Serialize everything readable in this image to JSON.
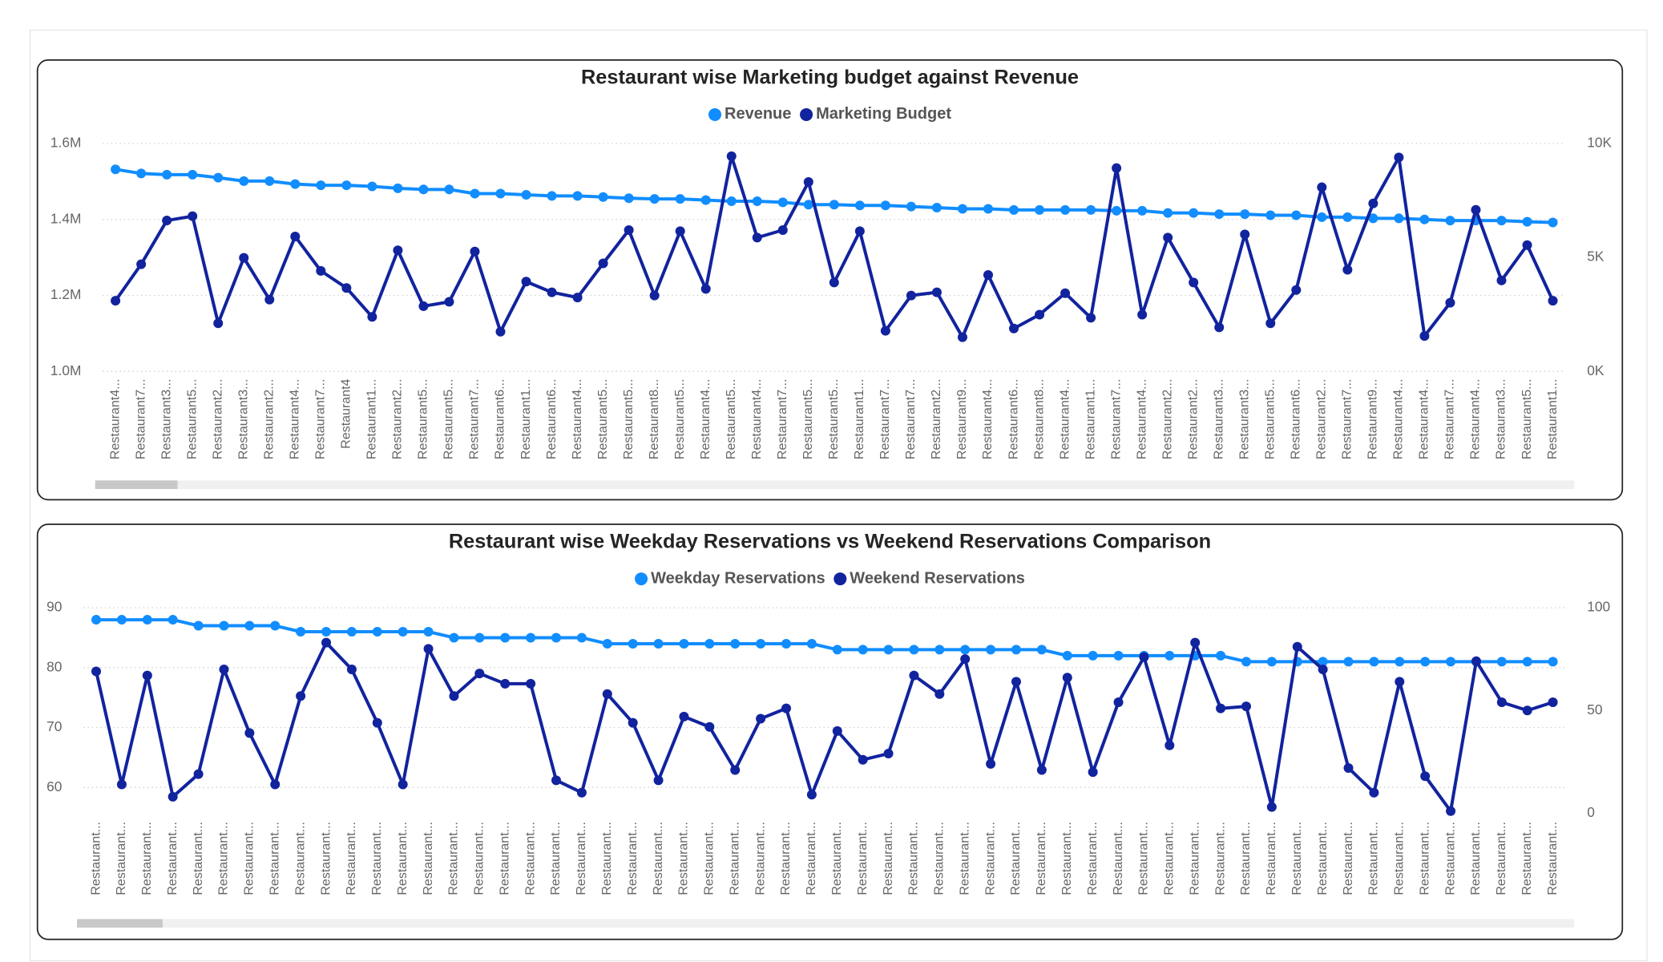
{
  "chart_data": [
    {
      "type": "line",
      "title": "Restaurant wise Marketing budget against Revenue",
      "legend": "top-center",
      "grid": true,
      "categories": [
        "Restaurant4...",
        "Restaurant7...",
        "Restaurant3...",
        "Restaurant5...",
        "Restaurant2...",
        "Restaurant3...",
        "Restaurant2...",
        "Restaurant4...",
        "Restaurant7...",
        "Restaurant4",
        "Restaurant1...",
        "Restaurant2...",
        "Restaurant5...",
        "Restaurant5...",
        "Restaurant7...",
        "Restaurant6...",
        "Restaurant1...",
        "Restaurant6...",
        "Restaurant4...",
        "Restaurant5...",
        "Restaurant5...",
        "Restaurant8...",
        "Restaurant5...",
        "Restaurant4...",
        "Restaurant5...",
        "Restaurant4...",
        "Restaurant7...",
        "Restaurant5...",
        "Restaurant5...",
        "Restaurant1...",
        "Restaurant7...",
        "Restaurant7...",
        "Restaurant2...",
        "Restaurant9...",
        "Restaurant4...",
        "Restaurant6...",
        "Restaurant8...",
        "Restaurant4...",
        "Restaurant1...",
        "Restaurant7...",
        "Restaurant4...",
        "Restaurant2...",
        "Restaurant2...",
        "Restaurant3...",
        "Restaurant3...",
        "Restaurant5...",
        "Restaurant6...",
        "Restaurant2...",
        "Restaurant7...",
        "Restaurant9...",
        "Restaurant4...",
        "Restaurant4...",
        "Restaurant7...",
        "Restaurant4...",
        "Restaurant3...",
        "Restaurant5...",
        "Restaurant1..."
      ],
      "ylim": [
        1000000,
        1600000
      ],
      "yticks": [
        {
          "value": 1000000,
          "label": "1.0M"
        },
        {
          "value": 1200000,
          "label": "1.2M"
        },
        {
          "value": 1400000,
          "label": "1.4M"
        },
        {
          "value": 1600000,
          "label": "1.6M"
        }
      ],
      "y2lim": [
        0,
        10000
      ],
      "y2ticks": [
        {
          "value": 0,
          "label": "0K"
        },
        {
          "value": 5000,
          "label": "5K"
        },
        {
          "value": 10000,
          "label": "10K"
        }
      ],
      "series": [
        {
          "name": "Revenue",
          "color": "#118DFF",
          "axis": "y",
          "values": [
            1532000,
            1521000,
            1518000,
            1518000,
            1510000,
            1501000,
            1501000,
            1493000,
            1490000,
            1490000,
            1487000,
            1482000,
            1479000,
            1479000,
            1468000,
            1468000,
            1465000,
            1462000,
            1462000,
            1459000,
            1456000,
            1454000,
            1454000,
            1451000,
            1448000,
            1448000,
            1445000,
            1439000,
            1439000,
            1437000,
            1437000,
            1434000,
            1431000,
            1428000,
            1428000,
            1425000,
            1425000,
            1425000,
            1425000,
            1423000,
            1423000,
            1417000,
            1417000,
            1414000,
            1414000,
            1411000,
            1411000,
            1406000,
            1406000,
            1403000,
            1403000,
            1400000,
            1397000,
            1397000,
            1397000,
            1394000,
            1392000
          ]
        },
        {
          "name": "Marketing Budget",
          "color": "#12239E",
          "axis": "y2",
          "values": [
            3100,
            4700,
            6620,
            6810,
            2110,
            4980,
            3150,
            5920,
            4410,
            3660,
            2390,
            5310,
            2860,
            3050,
            5260,
            1740,
            3940,
            3470,
            3240,
            4740,
            6200,
            3330,
            6150,
            3620,
            9440,
            5870,
            6200,
            8310,
            3900,
            6150,
            1780,
            3330,
            3470,
            1500,
            4230,
            1880,
            2490,
            3430,
            2350,
            8920,
            2490,
            5870,
            3900,
            1930,
            6010,
            2110,
            3570,
            8080,
            4460,
            7370,
            9390,
            1550,
            3010,
            7090,
            3990,
            5540,
            3100
          ]
        }
      ]
    },
    {
      "type": "line",
      "title": "Restaurant wise Weekday Reservations vs Weekend Reservations Comparison",
      "legend": "top-center",
      "grid": true,
      "categories": [
        "Restaurant...",
        "Restaurant...",
        "Restaurant...",
        "Restaurant...",
        "Restaurant...",
        "Restaurant...",
        "Restaurant...",
        "Restaurant...",
        "Restaurant...",
        "Restaurant...",
        "Restaurant...",
        "Restaurant...",
        "Restaurant...",
        "Restaurant...",
        "Restaurant...",
        "Restaurant...",
        "Restaurant...",
        "Restaurant...",
        "Restaurant...",
        "Restaurant...",
        "Restaurant...",
        "Restaurant...",
        "Restaurant...",
        "Restaurant...",
        "Restaurant...",
        "Restaurant...",
        "Restaurant...",
        "Restaurant...",
        "Restaurant...",
        "Restaurant...",
        "Restaurant...",
        "Restaurant...",
        "Restaurant...",
        "Restaurant...",
        "Restaurant...",
        "Restaurant...",
        "Restaurant...",
        "Restaurant...",
        "Restaurant...",
        "Restaurant...",
        "Restaurant...",
        "Restaurant...",
        "Restaurant...",
        "Restaurant...",
        "Restaurant...",
        "Restaurant...",
        "Restaurant...",
        "Restaurant...",
        "Restaurant...",
        "Restaurant...",
        "Restaurant...",
        "Restaurant...",
        "Restaurant...",
        "Restaurant...",
        "Restaurant...",
        "Restaurant...",
        "Restaurant...",
        "Restaurant..."
      ],
      "ylim": [
        55.7,
        90
      ],
      "yticks": [
        60,
        70,
        80,
        90
      ],
      "y2lim": [
        0,
        100
      ],
      "y2ticks": [
        0,
        50,
        100
      ],
      "series": [
        {
          "name": "Weekday Reservations",
          "color": "#118DFF",
          "axis": "y",
          "values": [
            88,
            88,
            88,
            88,
            87,
            87,
            87,
            87,
            86,
            86,
            86,
            86,
            86,
            86,
            85,
            85,
            85,
            85,
            85,
            85,
            84,
            84,
            84,
            84,
            84,
            84,
            84,
            84,
            84,
            83,
            83,
            83,
            83,
            83,
            83,
            83,
            83,
            83,
            82,
            82,
            82,
            82,
            82,
            82,
            82,
            81,
            81,
            81,
            81,
            81,
            81,
            81,
            81,
            81,
            81,
            81,
            81,
            81
          ]
        },
        {
          "name": "Weekend Reservations",
          "color": "#12239E",
          "axis": "y2",
          "values": [
            69,
            14,
            67,
            8,
            19,
            70,
            39,
            14,
            57,
            83,
            70,
            44,
            14,
            80,
            57,
            68,
            63,
            63,
            16,
            10,
            58,
            44,
            16,
            47,
            42,
            21,
            46,
            51,
            9,
            40,
            26,
            29,
            67,
            58,
            75,
            24,
            64,
            21,
            66,
            20,
            54,
            76,
            33,
            83,
            51,
            52,
            3,
            81,
            70,
            22,
            10,
            64,
            18,
            1,
            74,
            54,
            50,
            54
          ]
        }
      ]
    }
  ]
}
